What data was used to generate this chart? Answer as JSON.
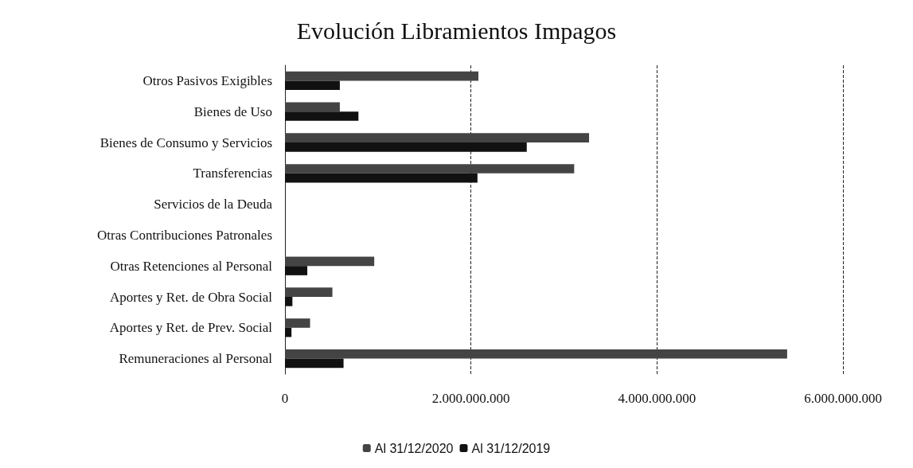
{
  "chart_data": {
    "type": "bar",
    "orientation": "horizontal",
    "title": "Evolución Libramientos Impagos",
    "categories": [
      "Otros Pasivos Exigibles",
      "Bienes de Uso",
      "Bienes de Consumo y Servicios",
      "Transferencias",
      "Servicios de la Deuda",
      "Otras Contribuciones Patronales",
      "Otras Retenciones al Personal",
      "Aportes y Ret. de Obra Social",
      "Aportes y Ret. de Prev. Social",
      "Remuneraciones al Personal"
    ],
    "series": [
      {
        "name": "Al 31/12/2020",
        "color": "#444444",
        "values": [
          2080000000,
          590000000,
          3270000000,
          3110000000,
          0,
          0,
          960000000,
          510000000,
          270000000,
          5400000000
        ]
      },
      {
        "name": "Al 31/12/2019",
        "color": "#111111",
        "values": [
          590000000,
          790000000,
          2600000000,
          2070000000,
          0,
          0,
          240000000,
          80000000,
          70000000,
          630000000
        ]
      }
    ],
    "xlim": [
      0,
      6000000000
    ],
    "xticks": [
      0,
      {
        "value": 2000000000,
        "label": "2.000.000.000"
      },
      {
        "value": 4000000000,
        "label": "4.000.000.000"
      },
      {
        "value": 6000000000,
        "label": "6.000.000.000"
      }
    ],
    "grid": "x",
    "legend": "bottom"
  }
}
